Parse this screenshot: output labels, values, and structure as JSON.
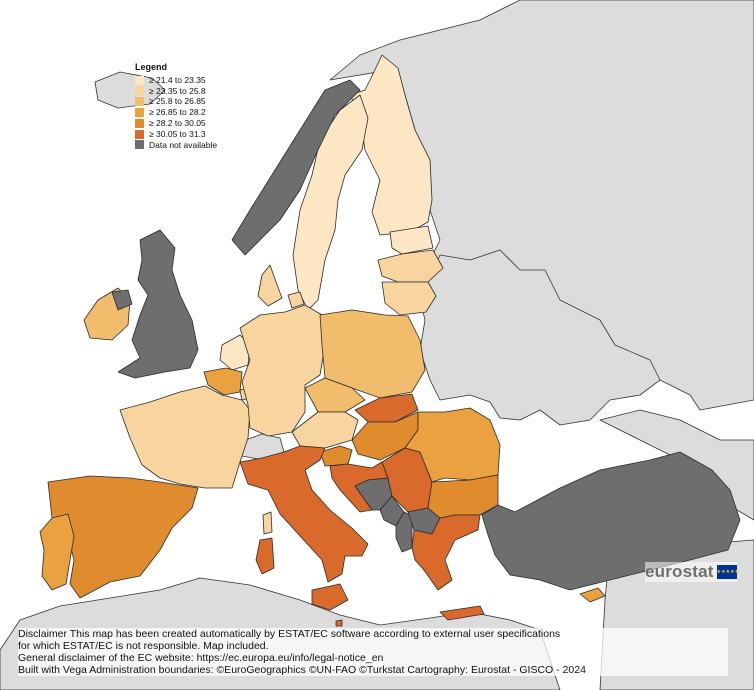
{
  "legend": {
    "title": "Legend",
    "items": [
      {
        "label": "≥ 21.4 to 23.35",
        "color": "#fce6c3"
      },
      {
        "label": "≥ 23.35 to 25.8",
        "color": "#f8d59e"
      },
      {
        "label": "≥ 25.8 to 26.85",
        "color": "#f1bc6c"
      },
      {
        "label": "≥ 26.85 to 28.2",
        "color": "#eaa140"
      },
      {
        "label": "≥ 28.2 to 30.05",
        "color": "#df8b2e"
      },
      {
        "label": "≥ 30.05 to 31.3",
        "color": "#d96a2c"
      },
      {
        "label": "Data not available",
        "color": "#6e6e6e"
      }
    ]
  },
  "colors": {
    "outside_land": "#dcdcdc",
    "sea": "#ffffff",
    "border": "#2b2b2b"
  },
  "logo": {
    "text": "eurostat",
    "icon": "eu-flag-icon"
  },
  "disclaimer": {
    "line1": "Disclaimer This map has been created automatically by ESTAT/EC software according to external user specifications",
    "line2": "for which ESTAT/EC is not responsible. Map included.",
    "line3": "General disclaimer of the EC website: https://ec.europa.eu/info/legal-notice_en",
    "line4": "Built with Vega Administration boundaries: ©EuroGeographics ©UN-FAO ©Turkstat Cartography: Eurostat - GISCO - 2024"
  },
  "regions": [
    {
      "id": "FI",
      "class": 0
    },
    {
      "id": "SE",
      "class": 0
    },
    {
      "id": "NO",
      "class": 6
    },
    {
      "id": "EE",
      "class": 0
    },
    {
      "id": "LV",
      "class": 1
    },
    {
      "id": "LT",
      "class": 1
    },
    {
      "id": "DK",
      "class": 1
    },
    {
      "id": "IE",
      "class": 2
    },
    {
      "id": "UK",
      "class": 6
    },
    {
      "id": "NL",
      "class": 0
    },
    {
      "id": "BE",
      "class": 3
    },
    {
      "id": "LU",
      "class": 1
    },
    {
      "id": "FR",
      "class": 1
    },
    {
      "id": "DE",
      "class": 1
    },
    {
      "id": "PL",
      "class": 2
    },
    {
      "id": "CZ",
      "class": 2
    },
    {
      "id": "SK",
      "class": 5
    },
    {
      "id": "AT",
      "class": 1
    },
    {
      "id": "HU",
      "class": 4
    },
    {
      "id": "SI",
      "class": 4
    },
    {
      "id": "HR",
      "class": 5
    },
    {
      "id": "RS",
      "class": 5
    },
    {
      "id": "BA",
      "class": 6
    },
    {
      "id": "ME",
      "class": 6
    },
    {
      "id": "MK",
      "class": 6
    },
    {
      "id": "AL",
      "class": 6
    },
    {
      "id": "RO",
      "class": 3
    },
    {
      "id": "BG",
      "class": 4
    },
    {
      "id": "EL",
      "class": 5
    },
    {
      "id": "TR",
      "class": 6
    },
    {
      "id": "CY",
      "class": 3
    },
    {
      "id": "IT",
      "class": 5
    },
    {
      "id": "MT",
      "class": 5
    },
    {
      "id": "ES",
      "class": 4
    },
    {
      "id": "PT",
      "class": 3
    },
    {
      "id": "CH",
      "class": 6
    }
  ]
}
